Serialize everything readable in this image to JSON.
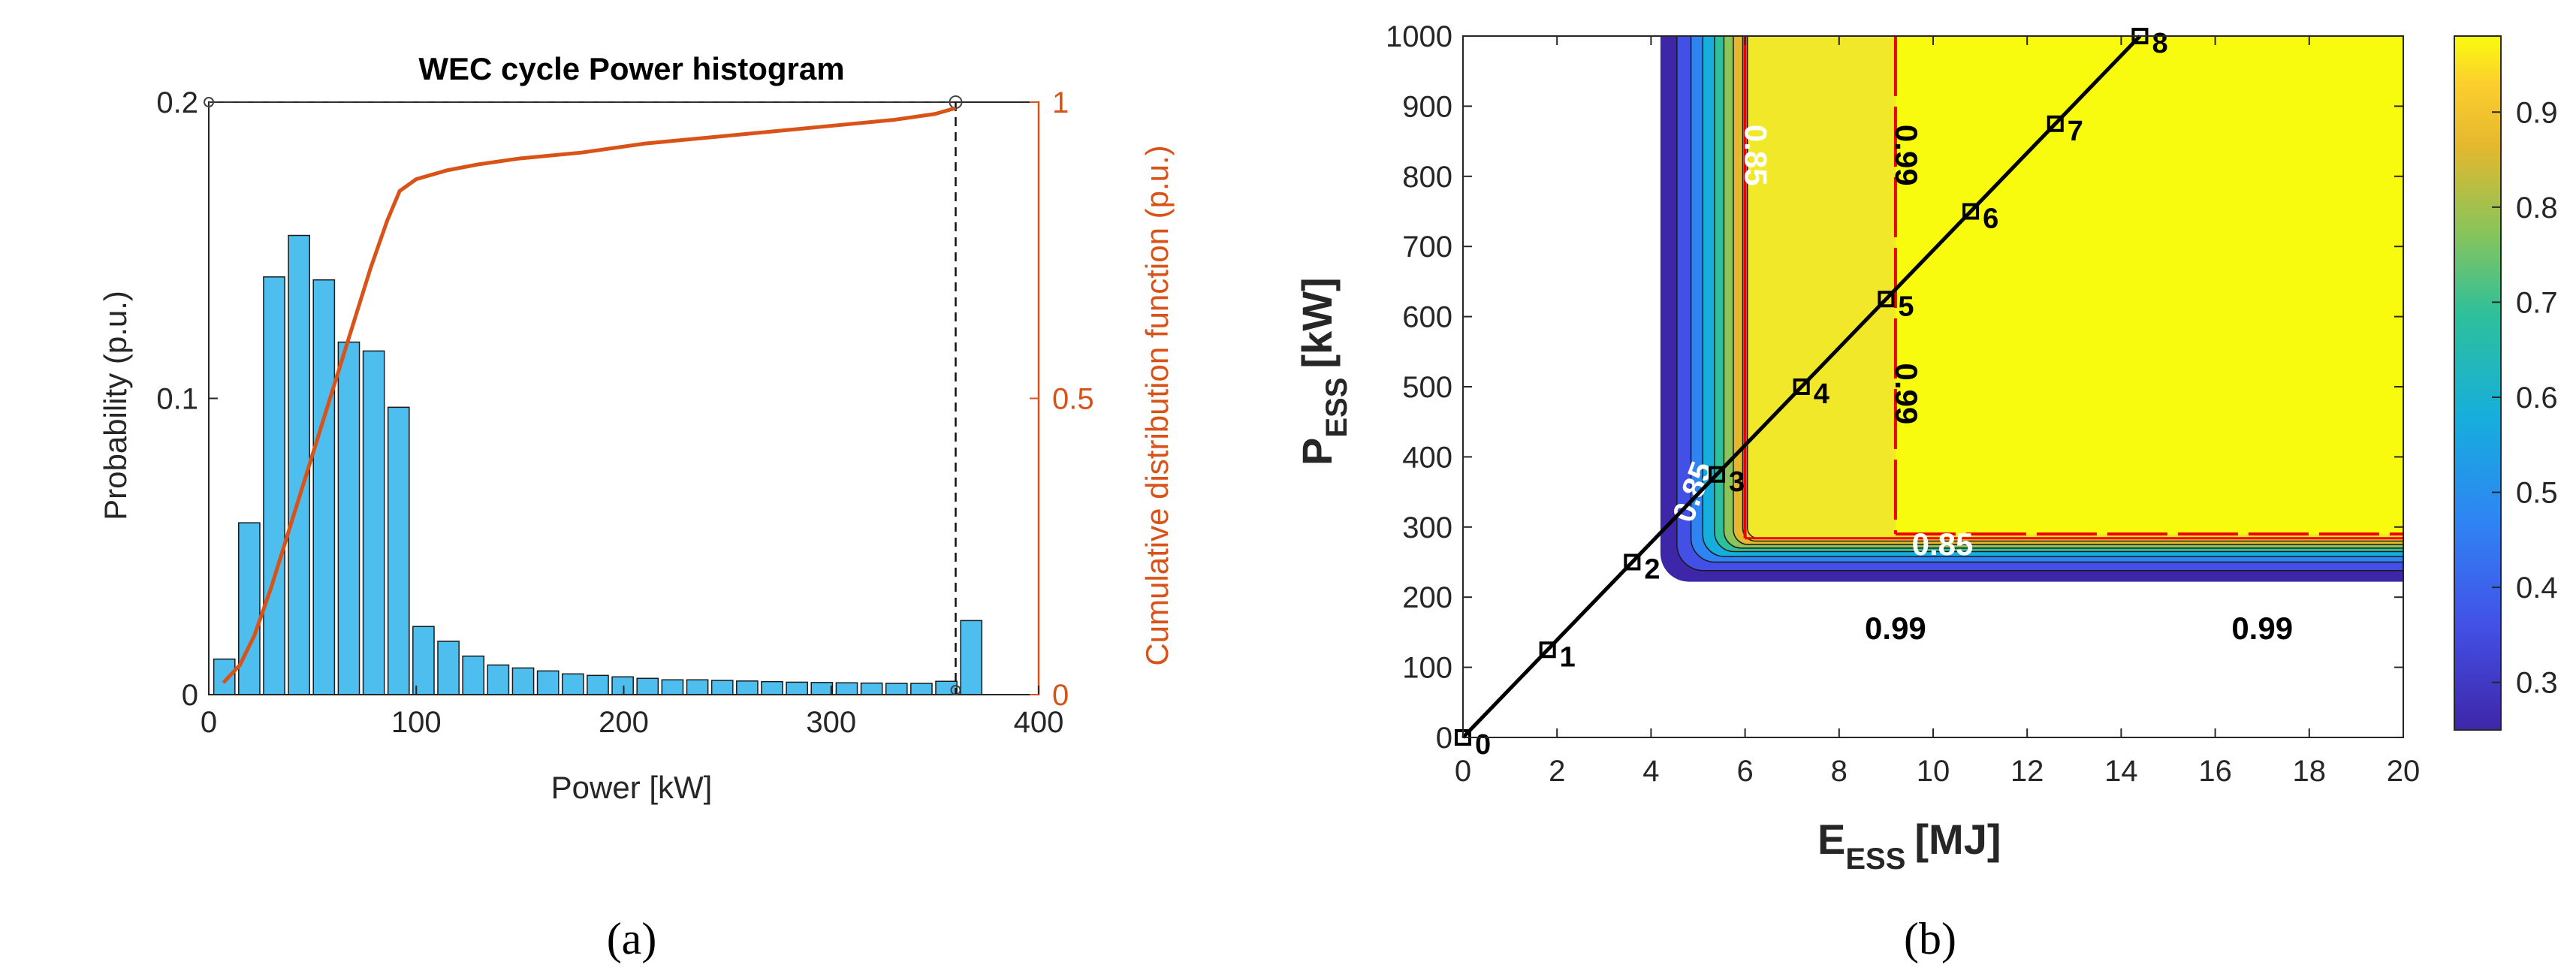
{
  "chart_data": [
    {
      "type": "bar",
      "title": "WEC cycle Power histogram",
      "xlabel": "Power [kW]",
      "ylabel": "Probability (p.u.)",
      "y2label": "Cumulative distribution function (p.u.)",
      "xlim": [
        0,
        400
      ],
      "ylim": [
        0,
        0.2
      ],
      "y2lim": [
        0,
        1
      ],
      "xticks": [
        0,
        100,
        200,
        300,
        400
      ],
      "yticks": [
        0,
        0.1,
        0.2
      ],
      "y2ticks": [
        0,
        0.5,
        1
      ],
      "xtick_labels": [
        "0",
        "100",
        "200",
        "300",
        "400"
      ],
      "ytick_labels": [
        "0",
        "0.1",
        "0.2"
      ],
      "y2tick_labels": [
        "0",
        "0.5",
        "1"
      ],
      "bar_color": "#4DBEEE",
      "cdf_color": "#D95319",
      "bin_width": 12,
      "bin_centers": [
        7.5,
        19.5,
        31.5,
        43.5,
        55.5,
        67.5,
        79.5,
        91.5,
        103.5,
        115.5,
        127.5,
        139.5,
        151.5,
        163.5,
        175.5,
        187.5,
        199.5,
        211.5,
        223.5,
        235.5,
        247.5,
        259.5,
        271.5,
        283.5,
        295.5,
        307.5,
        319.5,
        331.5,
        343.5,
        355.5,
        367.5
      ],
      "values": [
        0.012,
        0.058,
        0.141,
        0.155,
        0.14,
        0.119,
        0.116,
        0.097,
        0.023,
        0.018,
        0.013,
        0.01,
        0.009,
        0.008,
        0.007,
        0.0065,
        0.006,
        0.0055,
        0.005,
        0.005,
        0.0048,
        0.0046,
        0.0044,
        0.0042,
        0.0041,
        0.004,
        0.0039,
        0.0038,
        0.0038,
        0.0045,
        0.025
      ],
      "cdf": {
        "x": [
          7,
          15,
          22,
          30,
          38,
          46,
          54,
          62,
          70,
          78,
          86,
          92,
          100,
          115,
          130,
          150,
          180,
          210,
          240,
          270,
          300,
          330,
          350,
          360
        ],
        "y": [
          0.02,
          0.05,
          0.1,
          0.18,
          0.27,
          0.36,
          0.45,
          0.54,
          0.63,
          0.72,
          0.8,
          0.85,
          0.87,
          0.885,
          0.895,
          0.905,
          0.915,
          0.93,
          0.94,
          0.95,
          0.96,
          0.97,
          0.98,
          0.99
        ]
      },
      "marker_point": {
        "x": 360,
        "y": 0.2
      },
      "panel_label": "(a)"
    },
    {
      "type": "heatmap",
      "subtype": "filled-contour",
      "xlabel": "E",
      "xlabel_sub": "ESS",
      "xlabel_unit": "[MJ]",
      "ylabel": "P",
      "ylabel_sub": "ESS",
      "ylabel_unit": "[kW]",
      "xlim": [
        0,
        20
      ],
      "ylim": [
        0,
        1000
      ],
      "xticks": [
        0,
        2,
        4,
        6,
        8,
        10,
        12,
        14,
        16,
        18,
        20
      ],
      "yticks": [
        0,
        100,
        200,
        300,
        400,
        500,
        600,
        700,
        800,
        900,
        1000
      ],
      "xtick_labels": [
        "0",
        "2",
        "4",
        "6",
        "8",
        "10",
        "12",
        "14",
        "16",
        "18",
        "20"
      ],
      "ytick_labels": [
        "0",
        "100",
        "200",
        "300",
        "400",
        "500",
        "600",
        "700",
        "800",
        "900",
        "1000"
      ],
      "colorbar": {
        "range": [
          0.25,
          0.98
        ],
        "ticks": [
          0.3,
          0.4,
          0.5,
          0.6,
          0.7,
          0.8,
          0.9
        ],
        "tick_labels": [
          "0.3",
          "0.4",
          "0.5",
          "0.6",
          "0.7",
          "0.8",
          "0.9"
        ]
      },
      "contour_labels": [
        {
          "text": "0.85",
          "x": 5.1,
          "y": 345,
          "rotate": -70,
          "color": "#ffffff"
        },
        {
          "text": "0.99",
          "x": 9.2,
          "y": 140,
          "rotate": 0,
          "color": "#000000"
        },
        {
          "text": "0.85",
          "x": 10.2,
          "y": 260,
          "rotate": 0,
          "color": "#ffffff"
        },
        {
          "text": "0.99",
          "x": 17.0,
          "y": 140,
          "rotate": 0,
          "color": "#000000"
        },
        {
          "text": "0.99",
          "x": 9.2,
          "y": 490,
          "rotate": 90,
          "color": "#000000"
        },
        {
          "text": "0.99",
          "x": 9.2,
          "y": 830,
          "rotate": 90,
          "color": "#000000"
        },
        {
          "text": "0.85",
          "x": 6.0,
          "y": 830,
          "rotate": 90,
          "color": "#ffffff"
        }
      ],
      "design_line": {
        "x": [
          0,
          1.8,
          3.6,
          5.4,
          7.2,
          9.0,
          10.8,
          12.6,
          14.4
        ],
        "y": [
          0,
          125,
          250,
          375,
          500,
          625,
          750,
          875,
          1000
        ],
        "labels": [
          "0",
          "1",
          "2",
          "3",
          "4",
          "5",
          "6",
          "7",
          "8"
        ]
      },
      "panel_label": "(b)"
    }
  ]
}
